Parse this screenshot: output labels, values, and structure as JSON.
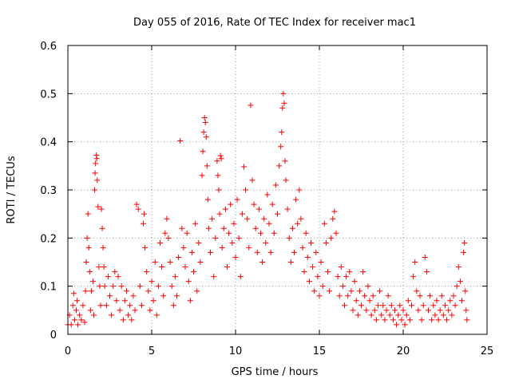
{
  "chart_data": {
    "type": "scatter",
    "title": "Day 055 of 2016, Rate Of TEC Index for receiver mac1",
    "xlabel": "GPS time / hours",
    "ylabel": "ROTI / TECUs",
    "xlim": [
      0,
      25
    ],
    "ylim": [
      0,
      0.6
    ],
    "xticks": [
      "0",
      "5",
      "10",
      "15",
      "20",
      "25"
    ],
    "yticks": [
      "0",
      "0.1",
      "0.2",
      "0.3",
      "0.4",
      "0.5",
      "0.6"
    ],
    "grid": true,
    "marker": "+",
    "color": "#ff0000",
    "series": [
      {
        "points": [
          [
            0.0,
            0.02
          ],
          [
            0.1,
            0.04
          ],
          [
            0.2,
            0.02
          ],
          [
            0.3,
            0.06
          ],
          [
            0.35,
            0.085
          ],
          [
            0.4,
            0.03
          ],
          [
            0.5,
            0.05
          ],
          [
            0.55,
            0.07
          ],
          [
            0.6,
            0.02
          ],
          [
            0.7,
            0.04
          ],
          [
            0.8,
            0.03
          ],
          [
            0.9,
            0.06
          ],
          [
            1.0,
            0.025
          ],
          [
            1.05,
            0.09
          ],
          [
            1.1,
            0.15
          ],
          [
            1.15,
            0.2
          ],
          [
            1.2,
            0.25
          ],
          [
            1.25,
            0.18
          ],
          [
            1.3,
            0.13
          ],
          [
            1.35,
            0.05
          ],
          [
            1.4,
            0.09
          ],
          [
            1.5,
            0.11
          ],
          [
            1.55,
            0.04
          ],
          [
            1.6,
            0.3
          ],
          [
            1.62,
            0.335
          ],
          [
            1.65,
            0.355
          ],
          [
            1.7,
            0.372
          ],
          [
            1.72,
            0.365
          ],
          [
            1.75,
            0.32
          ],
          [
            1.8,
            0.265
          ],
          [
            1.85,
            0.14
          ],
          [
            1.9,
            0.1
          ],
          [
            1.95,
            0.06
          ],
          [
            2.0,
            0.26
          ],
          [
            2.05,
            0.22
          ],
          [
            2.1,
            0.18
          ],
          [
            2.15,
            0.14
          ],
          [
            2.2,
            0.1
          ],
          [
            2.3,
            0.06
          ],
          [
            2.4,
            0.12
          ],
          [
            2.5,
            0.08
          ],
          [
            2.6,
            0.04
          ],
          [
            2.7,
            0.1
          ],
          [
            2.8,
            0.13
          ],
          [
            2.9,
            0.07
          ],
          [
            3.0,
            0.12
          ],
          [
            3.1,
            0.05
          ],
          [
            3.2,
            0.1
          ],
          [
            3.3,
            0.03
          ],
          [
            3.4,
            0.07
          ],
          [
            3.5,
            0.09
          ],
          [
            3.6,
            0.04
          ],
          [
            3.7,
            0.06
          ],
          [
            3.8,
            0.03
          ],
          [
            3.9,
            0.08
          ],
          [
            4.0,
            0.05
          ],
          [
            4.1,
            0.27
          ],
          [
            4.2,
            0.26
          ],
          [
            4.3,
            0.1
          ],
          [
            4.4,
            0.06
          ],
          [
            4.5,
            0.23
          ],
          [
            4.55,
            0.25
          ],
          [
            4.6,
            0.18
          ],
          [
            4.7,
            0.13
          ],
          [
            4.8,
            0.09
          ],
          [
            4.9,
            0.05
          ],
          [
            5.0,
            0.11
          ],
          [
            5.1,
            0.07
          ],
          [
            5.2,
            0.15
          ],
          [
            5.3,
            0.04
          ],
          [
            5.4,
            0.1
          ],
          [
            5.5,
            0.19
          ],
          [
            5.6,
            0.14
          ],
          [
            5.7,
            0.08
          ],
          [
            5.8,
            0.21
          ],
          [
            5.9,
            0.24
          ],
          [
            6.0,
            0.2
          ],
          [
            6.1,
            0.15
          ],
          [
            6.2,
            0.1
          ],
          [
            6.3,
            0.06
          ],
          [
            6.4,
            0.12
          ],
          [
            6.5,
            0.08
          ],
          [
            6.6,
            0.16
          ],
          [
            6.7,
            0.402
          ],
          [
            6.8,
            0.22
          ],
          [
            6.9,
            0.18
          ],
          [
            7.0,
            0.14
          ],
          [
            7.1,
            0.21
          ],
          [
            7.2,
            0.11
          ],
          [
            7.3,
            0.07
          ],
          [
            7.4,
            0.17
          ],
          [
            7.5,
            0.13
          ],
          [
            7.6,
            0.23
          ],
          [
            7.7,
            0.09
          ],
          [
            7.8,
            0.19
          ],
          [
            7.9,
            0.15
          ],
          [
            8.0,
            0.33
          ],
          [
            8.05,
            0.38
          ],
          [
            8.1,
            0.42
          ],
          [
            8.15,
            0.45
          ],
          [
            8.2,
            0.44
          ],
          [
            8.25,
            0.41
          ],
          [
            8.3,
            0.35
          ],
          [
            8.35,
            0.28
          ],
          [
            8.4,
            0.22
          ],
          [
            8.5,
            0.17
          ],
          [
            8.6,
            0.24
          ],
          [
            8.7,
            0.12
          ],
          [
            8.8,
            0.2
          ],
          [
            8.9,
            0.36
          ],
          [
            8.95,
            0.33
          ],
          [
            9.0,
            0.3
          ],
          [
            9.05,
            0.25
          ],
          [
            9.1,
            0.371
          ],
          [
            9.15,
            0.365
          ],
          [
            9.2,
            0.18
          ],
          [
            9.3,
            0.22
          ],
          [
            9.4,
            0.26
          ],
          [
            9.5,
            0.14
          ],
          [
            9.6,
            0.21
          ],
          [
            9.7,
            0.27
          ],
          [
            9.8,
            0.19
          ],
          [
            9.9,
            0.23
          ],
          [
            10.0,
            0.16
          ],
          [
            10.1,
            0.28
          ],
          [
            10.2,
            0.2
          ],
          [
            10.3,
            0.12
          ],
          [
            10.4,
            0.25
          ],
          [
            10.5,
            0.348
          ],
          [
            10.6,
            0.3
          ],
          [
            10.7,
            0.24
          ],
          [
            10.8,
            0.18
          ],
          [
            10.9,
            0.476
          ],
          [
            11.0,
            0.32
          ],
          [
            11.1,
            0.27
          ],
          [
            11.2,
            0.22
          ],
          [
            11.3,
            0.17
          ],
          [
            11.4,
            0.26
          ],
          [
            11.5,
            0.21
          ],
          [
            11.6,
            0.15
          ],
          [
            11.7,
            0.24
          ],
          [
            11.8,
            0.19
          ],
          [
            11.9,
            0.29
          ],
          [
            12.0,
            0.23
          ],
          [
            12.1,
            0.17
          ],
          [
            12.2,
            0.27
          ],
          [
            12.3,
            0.21
          ],
          [
            12.4,
            0.31
          ],
          [
            12.5,
            0.25
          ],
          [
            12.6,
            0.35
          ],
          [
            12.7,
            0.39
          ],
          [
            12.75,
            0.42
          ],
          [
            12.8,
            0.47
          ],
          [
            12.85,
            0.5
          ],
          [
            12.9,
            0.48
          ],
          [
            12.95,
            0.36
          ],
          [
            13.0,
            0.32
          ],
          [
            13.1,
            0.26
          ],
          [
            13.2,
            0.2
          ],
          [
            13.3,
            0.15
          ],
          [
            13.4,
            0.22
          ],
          [
            13.5,
            0.17
          ],
          [
            13.6,
            0.28
          ],
          [
            13.7,
            0.23
          ],
          [
            13.8,
            0.3
          ],
          [
            13.9,
            0.24
          ],
          [
            14.0,
            0.18
          ],
          [
            14.1,
            0.13
          ],
          [
            14.2,
            0.21
          ],
          [
            14.3,
            0.16
          ],
          [
            14.4,
            0.11
          ],
          [
            14.5,
            0.19
          ],
          [
            14.6,
            0.14
          ],
          [
            14.7,
            0.09
          ],
          [
            14.8,
            0.17
          ],
          [
            14.9,
            0.12
          ],
          [
            15.0,
            0.08
          ],
          [
            15.1,
            0.15
          ],
          [
            15.2,
            0.1
          ],
          [
            15.3,
            0.23
          ],
          [
            15.4,
            0.19
          ],
          [
            15.5,
            0.13
          ],
          [
            15.6,
            0.09
          ],
          [
            15.7,
            0.2
          ],
          [
            15.8,
            0.24
          ],
          [
            15.9,
            0.255
          ],
          [
            16.0,
            0.21
          ],
          [
            16.1,
            0.12
          ],
          [
            16.2,
            0.08
          ],
          [
            16.3,
            0.14
          ],
          [
            16.4,
            0.1
          ],
          [
            16.5,
            0.06
          ],
          [
            16.6,
            0.12
          ],
          [
            16.7,
            0.08
          ],
          [
            16.8,
            0.13
          ],
          [
            16.9,
            0.09
          ],
          [
            17.0,
            0.05
          ],
          [
            17.1,
            0.11
          ],
          [
            17.2,
            0.07
          ],
          [
            17.3,
            0.04
          ],
          [
            17.4,
            0.09
          ],
          [
            17.5,
            0.06
          ],
          [
            17.6,
            0.13
          ],
          [
            17.7,
            0.08
          ],
          [
            17.8,
            0.05
          ],
          [
            17.9,
            0.1
          ],
          [
            18.0,
            0.07
          ],
          [
            18.1,
            0.04
          ],
          [
            18.2,
            0.08
          ],
          [
            18.3,
            0.05
          ],
          [
            18.4,
            0.03
          ],
          [
            18.5,
            0.06
          ],
          [
            18.6,
            0.09
          ],
          [
            18.7,
            0.04
          ],
          [
            18.8,
            0.06
          ],
          [
            18.9,
            0.03
          ],
          [
            19.0,
            0.05
          ],
          [
            19.1,
            0.08
          ],
          [
            19.2,
            0.04
          ],
          [
            19.3,
            0.06
          ],
          [
            19.4,
            0.03
          ],
          [
            19.5,
            0.05
          ],
          [
            19.6,
            0.02
          ],
          [
            19.7,
            0.04
          ],
          [
            19.8,
            0.06
          ],
          [
            19.9,
            0.03
          ],
          [
            20.0,
            0.05
          ],
          [
            20.1,
            0.02
          ],
          [
            20.2,
            0.04
          ],
          [
            20.3,
            0.07
          ],
          [
            20.4,
            0.03
          ],
          [
            20.5,
            0.06
          ],
          [
            20.6,
            0.12
          ],
          [
            20.7,
            0.15
          ],
          [
            20.8,
            0.09
          ],
          [
            20.9,
            0.05
          ],
          [
            21.0,
            0.08
          ],
          [
            21.1,
            0.03
          ],
          [
            21.2,
            0.06
          ],
          [
            21.3,
            0.16
          ],
          [
            21.4,
            0.13
          ],
          [
            21.5,
            0.05
          ],
          [
            21.6,
            0.08
          ],
          [
            21.7,
            0.03
          ],
          [
            21.8,
            0.06
          ],
          [
            21.9,
            0.04
          ],
          [
            22.0,
            0.07
          ],
          [
            22.1,
            0.03
          ],
          [
            22.2,
            0.05
          ],
          [
            22.3,
            0.08
          ],
          [
            22.4,
            0.04
          ],
          [
            22.5,
            0.06
          ],
          [
            22.6,
            0.03
          ],
          [
            22.7,
            0.05
          ],
          [
            22.8,
            0.07
          ],
          [
            22.9,
            0.04
          ],
          [
            23.0,
            0.08
          ],
          [
            23.1,
            0.06
          ],
          [
            23.2,
            0.1
          ],
          [
            23.3,
            0.14
          ],
          [
            23.4,
            0.11
          ],
          [
            23.5,
            0.07
          ],
          [
            23.6,
            0.17
          ],
          [
            23.65,
            0.19
          ],
          [
            23.7,
            0.09
          ],
          [
            23.75,
            0.05
          ],
          [
            23.8,
            0.03
          ]
        ]
      }
    ]
  }
}
